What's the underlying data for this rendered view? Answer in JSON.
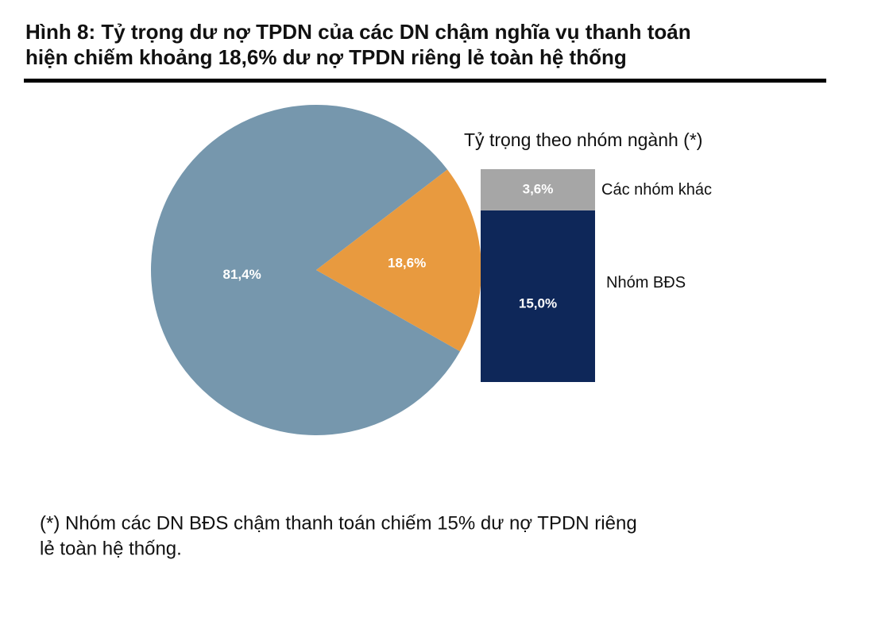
{
  "title": [
    "Hình 8: Tỷ trọng dư nợ TPDN của các DN chậm nghĩa vụ thanh toán",
    "hiện chiếm khoảng 18,6% dư nợ TPDN riêng lẻ toàn hệ thống"
  ],
  "note": [
    "(*) Nhóm các DN BĐS chậm thanh toán chiếm 15% dư nợ TPDN riêng",
    "lẻ toàn hệ thống."
  ],
  "chart_data": [
    {
      "type": "pie",
      "values": [
        81.4,
        18.6
      ],
      "value_labels": [
        "81,4%",
        "18,6%"
      ],
      "colors": [
        "#7697ad",
        "#e89a3f"
      ]
    },
    {
      "type": "bar",
      "stacked": true,
      "title": "Tỷ trọng theo nhóm ngành (*)",
      "series": [
        {
          "name": "Nhóm BĐS",
          "color": "#0e2759",
          "values": [
            15.0
          ],
          "value_labels": [
            "15,0%"
          ]
        },
        {
          "name": "Các nhóm khác",
          "color": "#a6a6a6",
          "values": [
            3.6
          ],
          "value_labels": [
            "3,6%"
          ]
        }
      ]
    }
  ]
}
